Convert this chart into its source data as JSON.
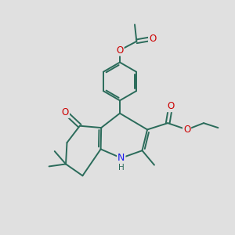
{
  "bg_color": "#e0e0e0",
  "bond_color": "#2a6b5a",
  "bond_width": 1.4,
  "atom_colors": {
    "O": "#cc0000",
    "N": "#1a1aee",
    "H": "#2a6b5a"
  },
  "font_size": 8.5
}
